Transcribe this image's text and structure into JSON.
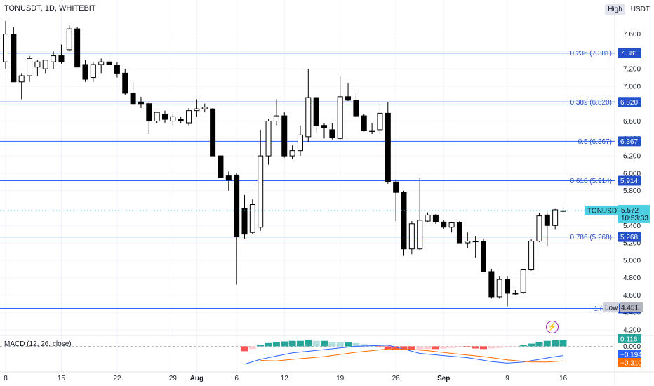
{
  "header": {
    "title": "TONUSDT, 1D, WHITEBIT"
  },
  "top_right": {
    "high_label": "High",
    "currency": "USDT"
  },
  "macd": {
    "label": "MACD (12, 26, close)"
  },
  "icons": {
    "alert": "lightning-icon"
  },
  "colors": {
    "up": "#ffffff",
    "down": "#000000",
    "fib_line": "#2962ff",
    "fib_badge": "#2451c8",
    "macd_line": "#2962ff",
    "signal_line": "#ff6d00",
    "hist_pos_strong": "#26a69a",
    "hist_pos_weak": "#b2dfdb",
    "hist_neg_strong": "#ff5252",
    "hist_neg_weak": "#ffcdd2",
    "price_badge": "#4dd0e1"
  },
  "chart_data": {
    "type": "candlestick",
    "symbol": "TONUSDT",
    "interval": "1D",
    "exchange": "WHITEBIT",
    "ylim": [
      4.2,
      7.75
    ],
    "y_ticks": [
      "7.600",
      "7.400",
      "7.200",
      "7.000",
      "6.800",
      "6.600",
      "6.400",
      "6.200",
      "6.000",
      "5.800",
      "5.600",
      "5.400",
      "5.200",
      "5.000",
      "4.800",
      "4.600",
      "4.400",
      "4.200"
    ],
    "x_ticks": [
      {
        "label": "8",
        "day": 0
      },
      {
        "label": "15",
        "day": 7
      },
      {
        "label": "22",
        "day": 14
      },
      {
        "label": "29",
        "day": 21
      },
      {
        "label": "Aug",
        "day": 24
      },
      {
        "label": "6",
        "day": 29
      },
      {
        "label": "12",
        "day": 35
      },
      {
        "label": "19",
        "day": 42
      },
      {
        "label": "26",
        "day": 49
      },
      {
        "label": "Sep",
        "day": 55
      },
      {
        "label": "9",
        "day": 63
      },
      {
        "label": "16",
        "day": 70
      }
    ],
    "candles": [
      {
        "o": 7.28,
        "h": 7.75,
        "l": 7.2,
        "c": 7.6
      },
      {
        "o": 7.6,
        "h": 7.68,
        "l": 7.05,
        "c": 7.05
      },
      {
        "o": 7.05,
        "h": 7.15,
        "l": 6.85,
        "c": 7.12
      },
      {
        "o": 7.12,
        "h": 7.35,
        "l": 7.05,
        "c": 7.32
      },
      {
        "o": 7.22,
        "h": 7.3,
        "l": 7.12,
        "c": 7.28
      },
      {
        "o": 7.2,
        "h": 7.3,
        "l": 7.15,
        "c": 7.3
      },
      {
        "o": 7.28,
        "h": 7.4,
        "l": 7.2,
        "c": 7.35
      },
      {
        "o": 7.35,
        "h": 7.48,
        "l": 7.26,
        "c": 7.28
      },
      {
        "o": 7.42,
        "h": 7.7,
        "l": 7.4,
        "c": 7.66
      },
      {
        "o": 7.66,
        "h": 7.68,
        "l": 7.22,
        "c": 7.22
      },
      {
        "o": 7.25,
        "h": 7.3,
        "l": 7.05,
        "c": 7.08
      },
      {
        "o": 7.1,
        "h": 7.28,
        "l": 7.05,
        "c": 7.25
      },
      {
        "o": 7.25,
        "h": 7.32,
        "l": 7.15,
        "c": 7.28
      },
      {
        "o": 7.28,
        "h": 7.35,
        "l": 7.22,
        "c": 7.25
      },
      {
        "o": 7.24,
        "h": 7.28,
        "l": 7.1,
        "c": 7.15
      },
      {
        "o": 7.15,
        "h": 7.2,
        "l": 6.9,
        "c": 6.92
      },
      {
        "o": 6.92,
        "h": 7.05,
        "l": 6.78,
        "c": 6.8
      },
      {
        "o": 6.82,
        "h": 6.88,
        "l": 6.75,
        "c": 6.8
      },
      {
        "o": 6.8,
        "h": 6.82,
        "l": 6.45,
        "c": 6.6
      },
      {
        "o": 6.6,
        "h": 6.7,
        "l": 6.58,
        "c": 6.7
      },
      {
        "o": 6.68,
        "h": 6.72,
        "l": 6.58,
        "c": 6.62
      },
      {
        "o": 6.6,
        "h": 6.68,
        "l": 6.55,
        "c": 6.65
      },
      {
        "o": 6.62,
        "h": 6.65,
        "l": 6.58,
        "c": 6.6
      },
      {
        "o": 6.58,
        "h": 6.75,
        "l": 6.55,
        "c": 6.72
      },
      {
        "o": 6.72,
        "h": 6.85,
        "l": 6.65,
        "c": 6.74
      },
      {
        "o": 6.74,
        "h": 6.8,
        "l": 6.7,
        "c": 6.76
      },
      {
        "o": 6.74,
        "h": 6.75,
        "l": 6.2,
        "c": 6.2
      },
      {
        "o": 6.2,
        "h": 6.2,
        "l": 5.95,
        "c": 5.95
      },
      {
        "o": 5.97,
        "h": 6.02,
        "l": 5.8,
        "c": 5.92
      },
      {
        "o": 5.98,
        "h": 6.0,
        "l": 4.72,
        "c": 5.27
      },
      {
        "o": 5.6,
        "h": 5.75,
        "l": 5.25,
        "c": 5.3
      },
      {
        "o": 5.32,
        "h": 5.7,
        "l": 5.3,
        "c": 5.64
      },
      {
        "o": 5.38,
        "h": 6.5,
        "l": 5.34,
        "c": 6.2
      },
      {
        "o": 6.2,
        "h": 6.62,
        "l": 6.1,
        "c": 6.6
      },
      {
        "o": 6.6,
        "h": 6.85,
        "l": 6.55,
        "c": 6.66
      },
      {
        "o": 6.66,
        "h": 6.7,
        "l": 6.18,
        "c": 6.2
      },
      {
        "o": 6.2,
        "h": 6.32,
        "l": 6.16,
        "c": 6.26
      },
      {
        "o": 6.26,
        "h": 6.55,
        "l": 6.2,
        "c": 6.44
      },
      {
        "o": 6.42,
        "h": 7.2,
        "l": 6.36,
        "c": 6.87
      },
      {
        "o": 6.87,
        "h": 6.88,
        "l": 6.47,
        "c": 6.55
      },
      {
        "o": 6.55,
        "h": 6.58,
        "l": 6.4,
        "c": 6.52
      },
      {
        "o": 6.5,
        "h": 6.58,
        "l": 6.39,
        "c": 6.41
      },
      {
        "o": 6.4,
        "h": 7.12,
        "l": 6.38,
        "c": 6.88
      },
      {
        "o": 6.88,
        "h": 7.04,
        "l": 6.83,
        "c": 6.84
      },
      {
        "o": 6.84,
        "h": 6.92,
        "l": 6.64,
        "c": 6.66
      },
      {
        "o": 6.66,
        "h": 6.68,
        "l": 6.48,
        "c": 6.49
      },
      {
        "o": 6.49,
        "h": 6.58,
        "l": 6.45,
        "c": 6.48
      },
      {
        "o": 6.5,
        "h": 6.8,
        "l": 6.45,
        "c": 6.69
      },
      {
        "o": 6.69,
        "h": 6.82,
        "l": 5.88,
        "c": 5.9
      },
      {
        "o": 5.9,
        "h": 5.93,
        "l": 5.45,
        "c": 5.78
      },
      {
        "o": 5.78,
        "h": 5.8,
        "l": 5.05,
        "c": 5.13
      },
      {
        "o": 5.13,
        "h": 5.45,
        "l": 5.07,
        "c": 5.42
      },
      {
        "o": 5.13,
        "h": 5.95,
        "l": 5.12,
        "c": 5.46
      },
      {
        "o": 5.45,
        "h": 5.55,
        "l": 5.44,
        "c": 5.52
      },
      {
        "o": 5.52,
        "h": 5.53,
        "l": 5.42,
        "c": 5.44
      },
      {
        "o": 5.44,
        "h": 5.46,
        "l": 5.36,
        "c": 5.38
      },
      {
        "o": 5.38,
        "h": 5.43,
        "l": 5.32,
        "c": 5.43
      },
      {
        "o": 5.43,
        "h": 5.45,
        "l": 5.2,
        "c": 5.2
      },
      {
        "o": 5.2,
        "h": 5.32,
        "l": 5.14,
        "c": 5.22
      },
      {
        "o": 5.22,
        "h": 5.28,
        "l": 5.03,
        "c": 5.22
      },
      {
        "o": 5.22,
        "h": 5.25,
        "l": 4.87,
        "c": 4.87
      },
      {
        "o": 4.87,
        "h": 4.9,
        "l": 4.56,
        "c": 4.58
      },
      {
        "o": 4.58,
        "h": 4.82,
        "l": 4.56,
        "c": 4.78
      },
      {
        "o": 4.78,
        "h": 4.82,
        "l": 4.47,
        "c": 4.62
      },
      {
        "o": 4.62,
        "h": 4.66,
        "l": 4.6,
        "c": 4.62
      },
      {
        "o": 4.63,
        "h": 4.9,
        "l": 4.61,
        "c": 4.89
      },
      {
        "o": 4.89,
        "h": 5.24,
        "l": 4.88,
        "c": 5.22
      },
      {
        "o": 5.22,
        "h": 5.54,
        "l": 5.21,
        "c": 5.51
      },
      {
        "o": 5.52,
        "h": 5.55,
        "l": 5.17,
        "c": 5.4
      },
      {
        "o": 5.4,
        "h": 5.59,
        "l": 5.35,
        "c": 5.58
      },
      {
        "o": 5.57,
        "h": 5.64,
        "l": 5.5,
        "c": 5.57
      }
    ],
    "fib_levels": [
      {
        "label": "0.236 (7.381)",
        "value": 7.381,
        "badge": "7.381"
      },
      {
        "label": "0.382 (6.820)",
        "value": 6.82,
        "badge": "6.820"
      },
      {
        "label": "0.5 (6.367)",
        "value": 6.367,
        "badge": "6.367"
      },
      {
        "label": "0.618 (5.914)",
        "value": 5.914,
        "badge": "5.914"
      },
      {
        "label": "0.786 (5.268)",
        "value": 5.268,
        "badge": "5.268"
      },
      {
        "label": "1 (4.4",
        "value": 4.446,
        "badge": "4.446"
      }
    ],
    "last_price": {
      "symbol": "TONUSDT",
      "value": 5.572,
      "label": "5.572",
      "countdown": "10:53:33"
    },
    "low_marker": {
      "label": "Low",
      "value": 4.451,
      "text": "4.451"
    },
    "macd": {
      "ylim": [
        -0.37,
        0.2
      ],
      "y_ticks": [
        "0.000"
      ],
      "histogram": [
        0,
        0,
        0,
        0,
        0,
        0,
        0,
        0,
        0,
        0,
        0,
        0,
        0,
        0,
        0,
        0,
        0,
        0,
        0,
        0,
        0,
        0,
        0,
        0,
        0,
        0,
        0,
        0,
        0,
        0,
        -0.09,
        -0.05,
        0.03,
        0.06,
        0.08,
        0.09,
        0.1,
        0.1,
        0.12,
        0.1,
        0.1,
        0.08,
        0.07,
        0.07,
        0.06,
        0.04,
        0.03,
        -0.02,
        -0.05,
        -0.07,
        -0.07,
        -0.07,
        -0.06,
        -0.05,
        -0.05,
        -0.04,
        -0.03,
        -0.02,
        -0.02,
        -0.04,
        -0.05,
        -0.04,
        -0.03,
        -0.02,
        -0.01,
        0.02,
        0.05,
        0.08,
        0.1,
        0.11,
        0.116
      ],
      "macd_line_labeled": "−0.194",
      "signal_line_labeled": "−0.310",
      "histogram_labeled": "0.116"
    }
  }
}
